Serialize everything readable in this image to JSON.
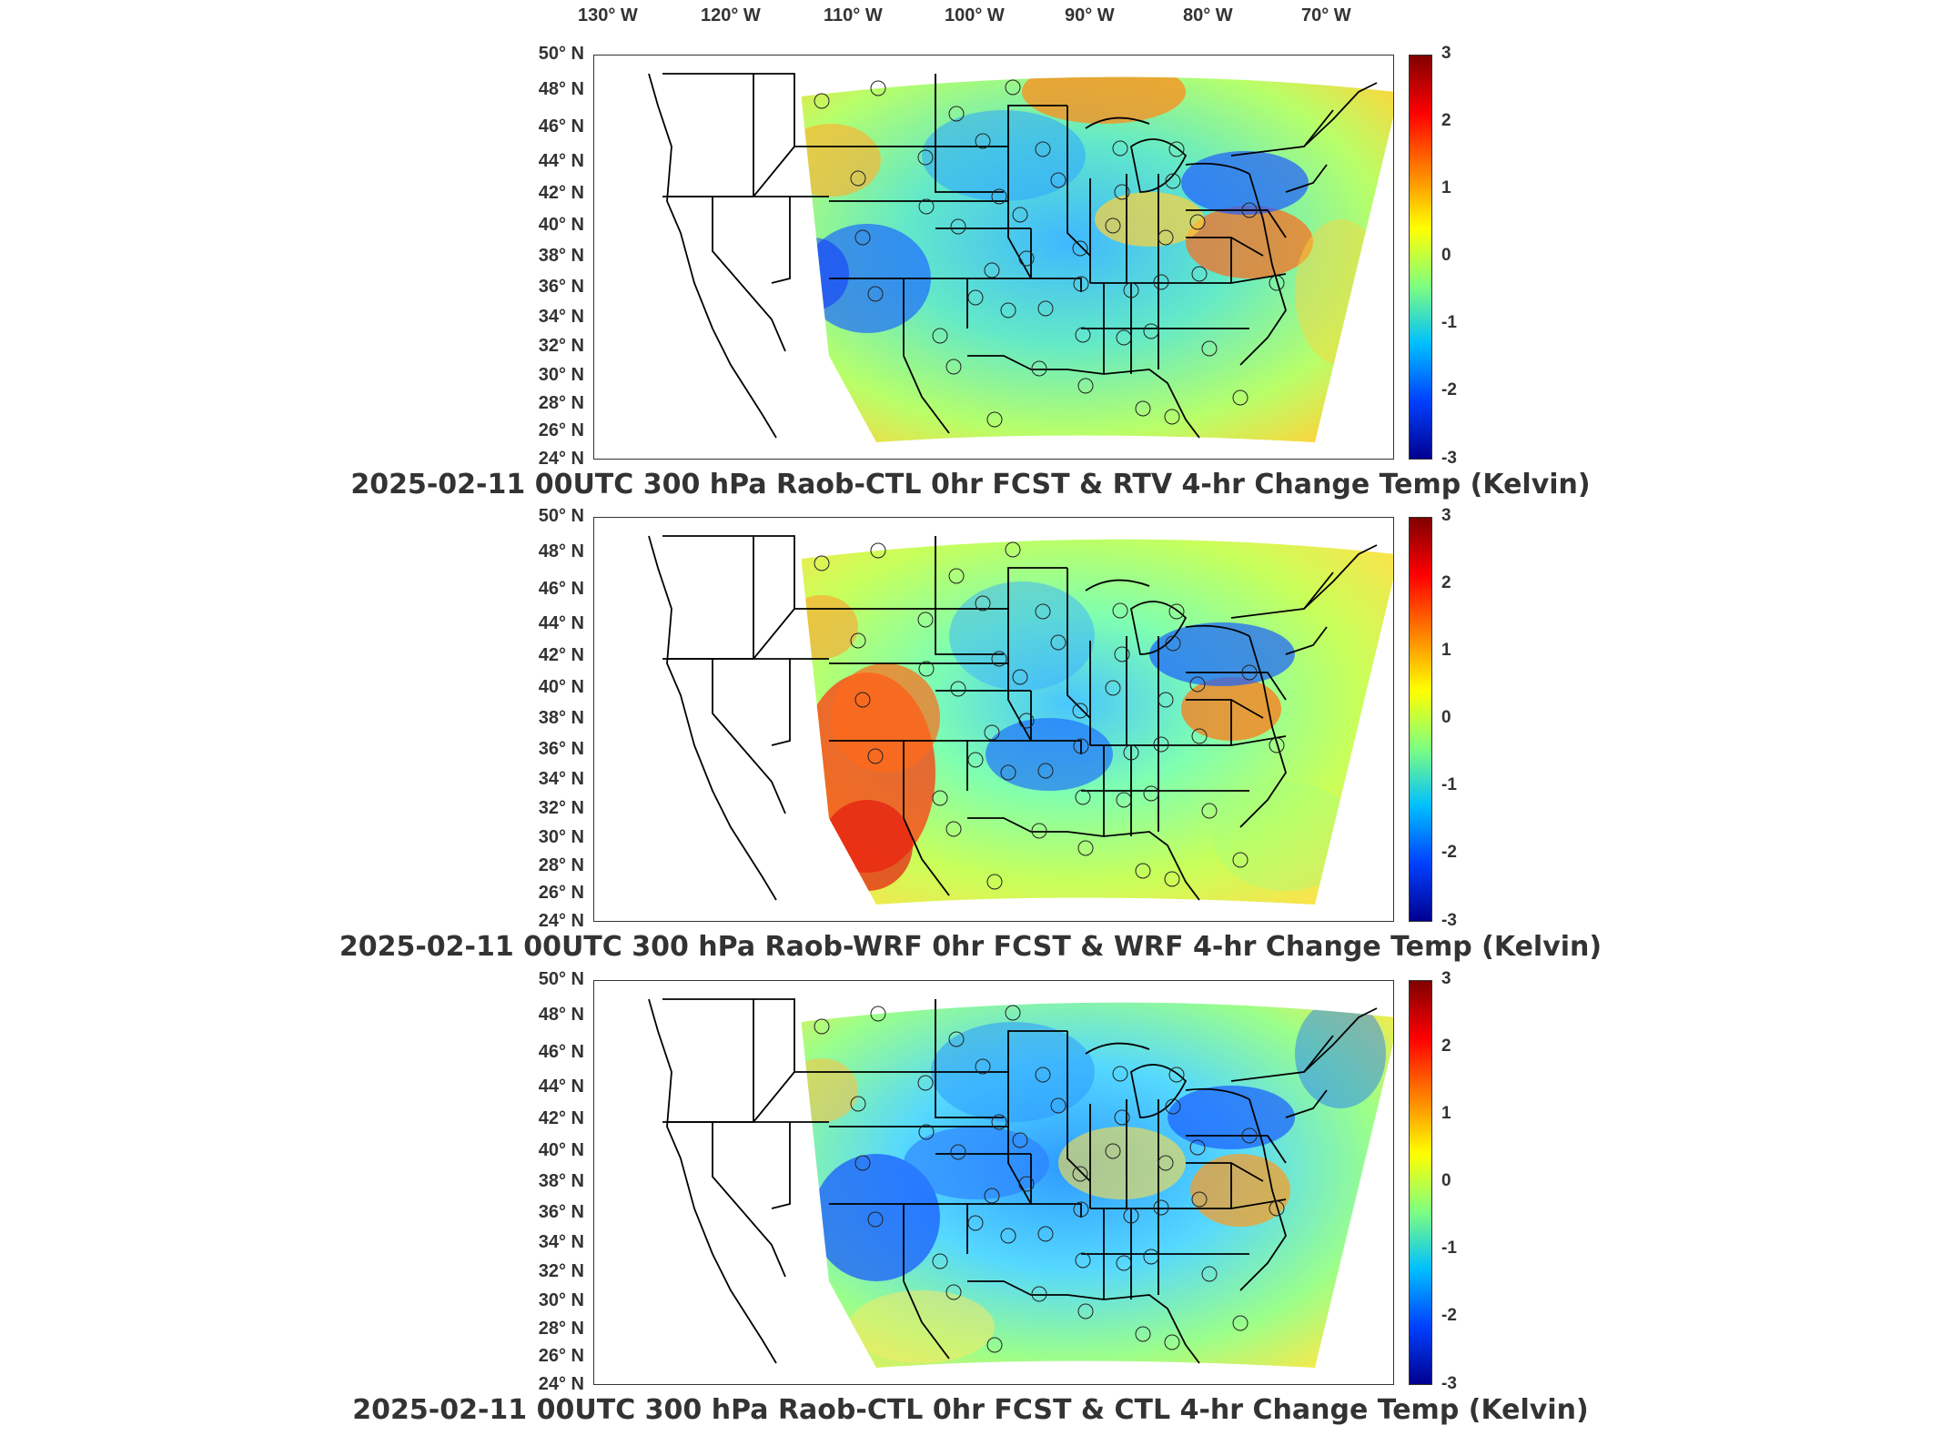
{
  "lon_labels": [
    "130° W",
    "120° W",
    "110° W",
    "100° W",
    "90° W",
    "80° W",
    "70° W"
  ],
  "lat_labels": [
    "50° N",
    "48° N",
    "46° N",
    "44° N",
    "42° N",
    "40° N",
    "38° N",
    "36° N",
    "34° N",
    "32° N",
    "30° N",
    "28° N",
    "26° N",
    "24° N"
  ],
  "colorbar": {
    "ticks": [
      "3",
      "2",
      "1",
      "0",
      "-1",
      "-2",
      "-3"
    ],
    "colors": [
      "#7f0000",
      "#ff0000",
      "#ff7f00",
      "#ffff00",
      "#7fff7f",
      "#00bfff",
      "#0040ff",
      "#00008f"
    ]
  },
  "panels": [
    {
      "title": "2025-02-11 00UTC 300 hPa Raob-CTL 0hr FCST & RTV 4-hr Change Temp (Kelvin)",
      "pattern": "rtv"
    },
    {
      "title": "2025-02-11 00UTC 300 hPa Raob-WRF 0hr FCST & WRF 4-hr Change Temp (Kelvin)",
      "pattern": "wrf"
    },
    {
      "title": "2025-02-11 00UTC 300 hPa Raob-CTL 0hr FCST & CTL 4-hr Change Temp (Kelvin)",
      "pattern": "ctl"
    }
  ]
}
